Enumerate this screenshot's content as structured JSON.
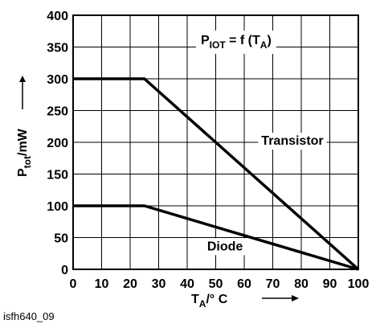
{
  "chart_data": {
    "type": "line",
    "x": [
      0,
      10,
      20,
      30,
      40,
      50,
      60,
      70,
      80,
      90,
      100
    ],
    "xlim": [
      0,
      100
    ],
    "ylim": [
      0,
      400
    ],
    "x_ticks": [
      "0",
      "10",
      "20",
      "30",
      "40",
      "50",
      "60",
      "70",
      "80",
      "90",
      "100"
    ],
    "y_ticks": [
      "0",
      "50",
      "100",
      "150",
      "200",
      "250",
      "300",
      "350",
      "400"
    ],
    "grid": true,
    "xlabel": {
      "main": "T",
      "sub": "A",
      "rest": "/° C"
    },
    "ylabel": {
      "main": "P",
      "sub": "tot",
      "rest": "/mW"
    },
    "annotation": {
      "p": "P",
      "p_sub": "IOT",
      "mid": " = f (T",
      "t_sub": "A",
      "end": ")"
    },
    "series": [
      {
        "name": "Transistor",
        "points": [
          [
            0,
            300
          ],
          [
            25,
            300
          ],
          [
            100,
            0
          ]
        ],
        "label_at": [
          66,
          196
        ]
      },
      {
        "name": "Diode",
        "points": [
          [
            0,
            100
          ],
          [
            25,
            100
          ],
          [
            100,
            0
          ]
        ],
        "label_at": [
          47,
          30
        ]
      }
    ],
    "colors": {
      "line": "#000000",
      "grid": "#000000",
      "background": "#ffffff"
    }
  },
  "caption": "isfh640_09"
}
